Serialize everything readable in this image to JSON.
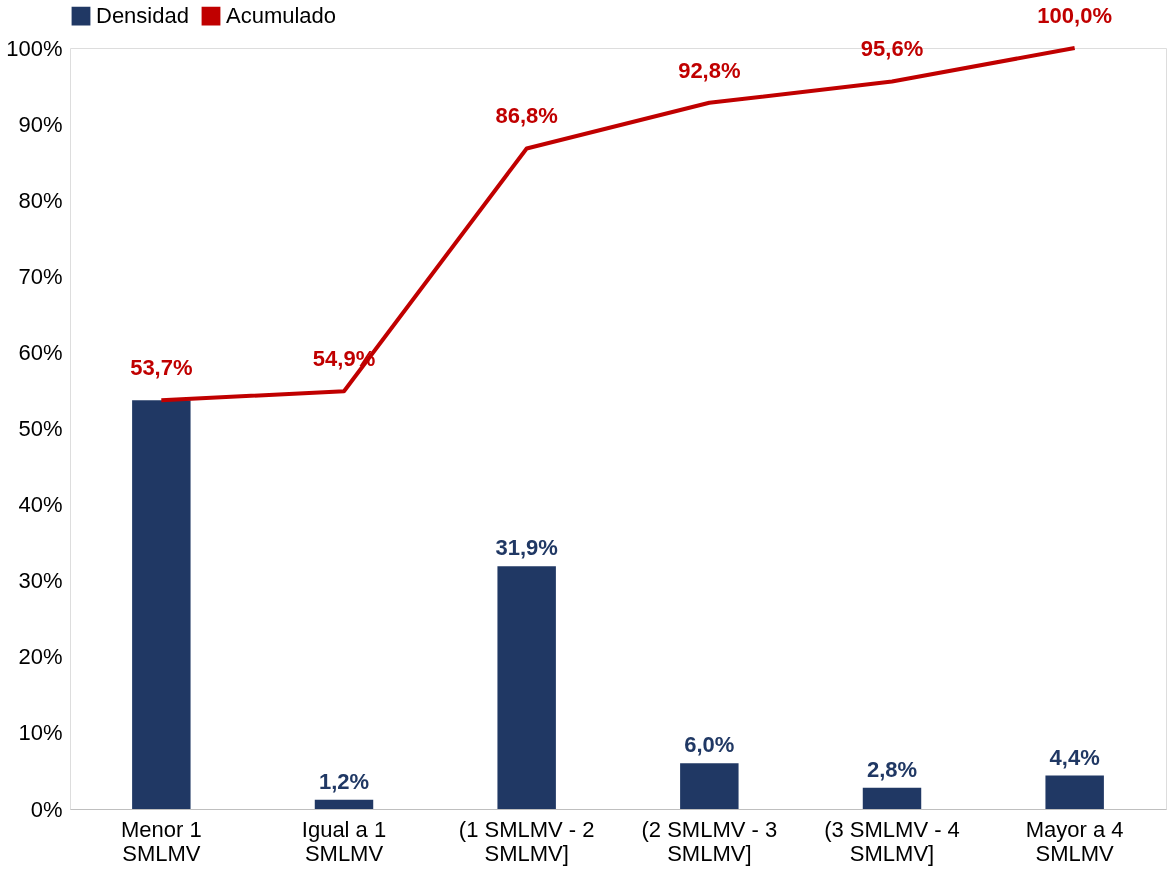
{
  "chart_data": {
    "type": "bar",
    "categories": [
      "Menor 1 SMLMV",
      "Igual a 1 SMLMV",
      "(1 SMLMV - 2 SMLMV]",
      "(2 SMLMV - 3 SMLMV]",
      "(3 SMLMV - 4 SMLMV]",
      "Mayor a 4 SMLMV"
    ],
    "series": [
      {
        "name": "Densidad",
        "color": "#203864",
        "values": [
          53.7,
          1.2,
          31.9,
          6.0,
          2.8,
          4.4
        ],
        "value_labels": [
          null,
          "1,2%",
          "31,9%",
          "6,0%",
          "2,8%",
          "4,4%"
        ]
      },
      {
        "name": "Acumulado",
        "type": "line",
        "color": "#c00000",
        "values": [
          53.7,
          54.9,
          86.8,
          92.8,
          95.6,
          100.0
        ],
        "value_labels": [
          "53,7%",
          "54,9%",
          "86,8%",
          "92,8%",
          "95,6%",
          "100,0%"
        ]
      }
    ],
    "ylim": [
      0,
      100
    ],
    "yticks": [
      {
        "value": 0,
        "label": "0%"
      },
      {
        "value": 10,
        "label": "10%"
      },
      {
        "value": 20,
        "label": "20%"
      },
      {
        "value": 30,
        "label": "30%"
      },
      {
        "value": 40,
        "label": "40%"
      },
      {
        "value": 50,
        "label": "50%"
      },
      {
        "value": 60,
        "label": "60%"
      },
      {
        "value": 70,
        "label": "70%"
      },
      {
        "value": 80,
        "label": "80%"
      },
      {
        "value": 90,
        "label": "90%"
      },
      {
        "value": 100,
        "label": "100%"
      }
    ],
    "grid": false,
    "legend": "top",
    "marker": "none",
    "line_style": "solid"
  }
}
